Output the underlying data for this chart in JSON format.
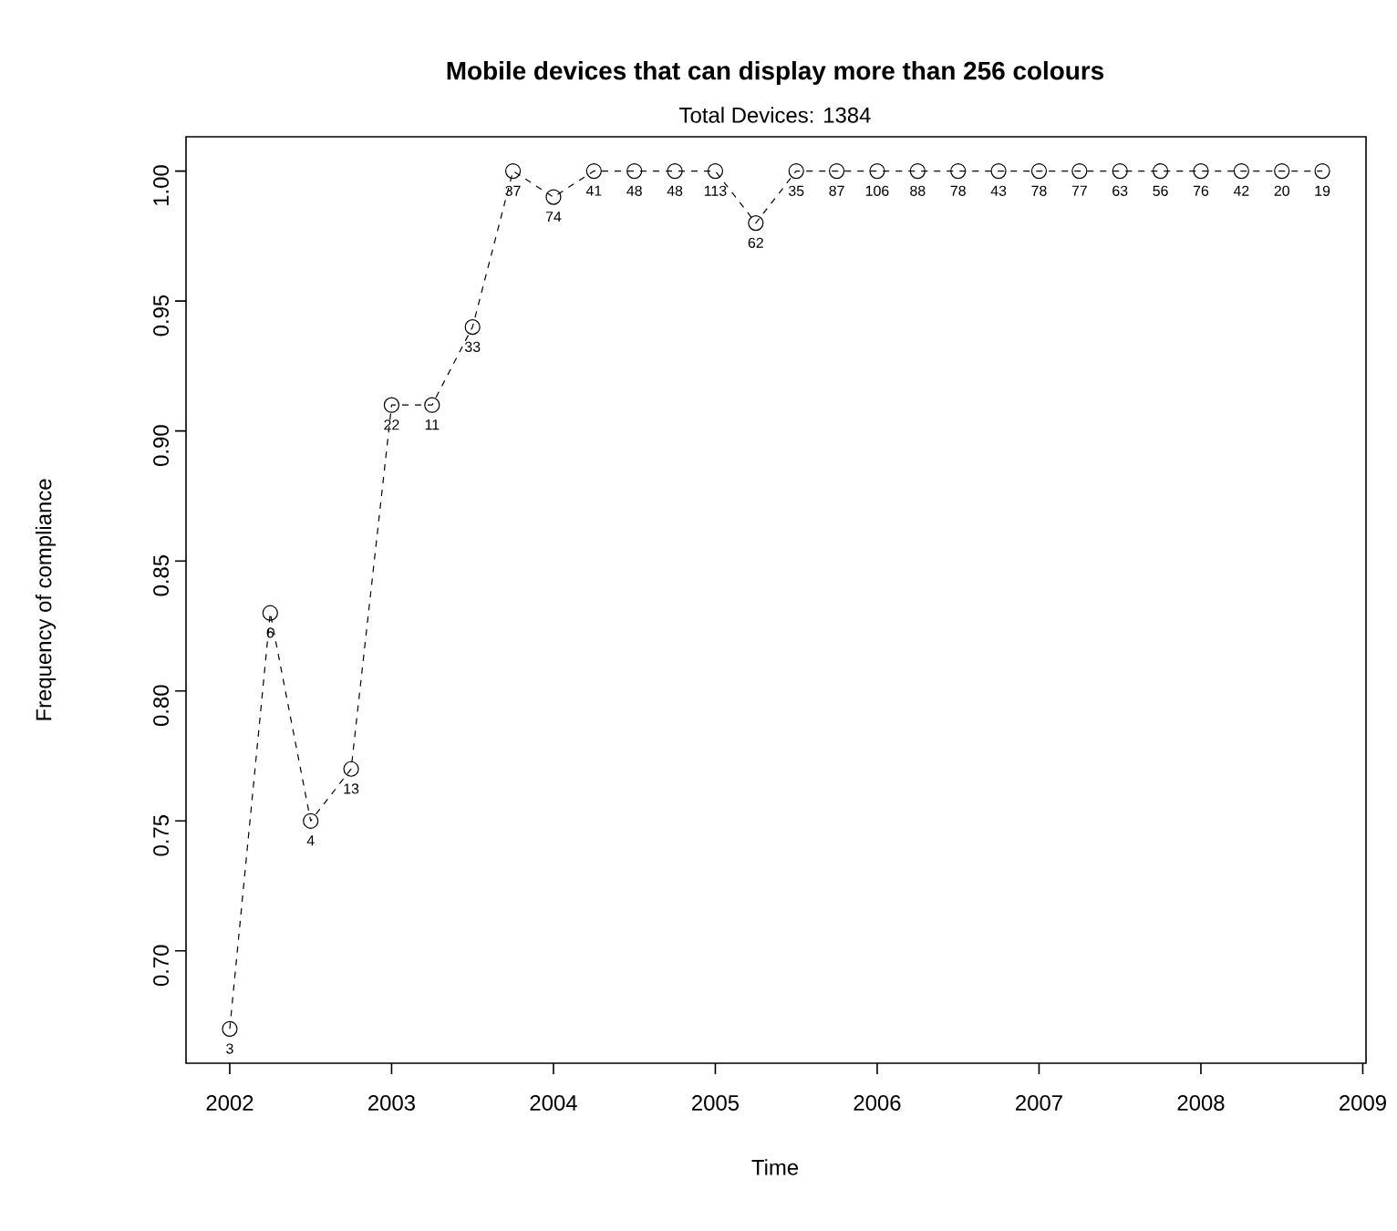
{
  "chart_data": {
    "type": "line",
    "title": "Mobile devices that can display more than 256 colours",
    "subtitle": "Total Devices: 1384",
    "xlabel": "Time",
    "ylabel": "Frequency of compliance",
    "x": [
      2002,
      2002.25,
      2002.5,
      2002.75,
      2003,
      2003.25,
      2003.5,
      2003.75,
      2004,
      2004.25,
      2004.5,
      2004.75,
      2005,
      2005.25,
      2005.5,
      2005.75,
      2006,
      2006.25,
      2006.5,
      2006.75,
      2007,
      2007.25,
      2007.5,
      2007.75,
      2008,
      2008.25,
      2008.5,
      2008.75
    ],
    "values": [
      0.67,
      0.83,
      0.75,
      0.77,
      0.91,
      0.91,
      0.94,
      1.0,
      0.99,
      1.0,
      1.0,
      1.0,
      1.0,
      0.98,
      1.0,
      1.0,
      1.0,
      1.0,
      1.0,
      1.0,
      1.0,
      1.0,
      1.0,
      1.0,
      1.0,
      1.0,
      1.0,
      1.0
    ],
    "annotations": [
      {
        "text": "3",
        "x": 2002,
        "y": 0.67
      },
      {
        "text": "6",
        "x": 2002.25,
        "y": 0.83
      },
      {
        "text": "4",
        "x": 2002.5,
        "y": 0.75
      },
      {
        "text": "13",
        "x": 2002.75,
        "y": 0.77
      },
      {
        "text": "22",
        "x": 2003,
        "y": 0.91
      },
      {
        "text": "11",
        "x": 2003.25,
        "y": 0.91
      },
      {
        "text": "33",
        "x": 2003.5,
        "y": 0.94
      },
      {
        "text": "37",
        "x": 2003.75,
        "y": 1.0
      },
      {
        "text": "74",
        "x": 2004,
        "y": 0.99
      },
      {
        "text": "41",
        "x": 2004.25,
        "y": 1.0
      },
      {
        "text": "48",
        "x": 2004.5,
        "y": 1.0
      },
      {
        "text": "48",
        "x": 2004.75,
        "y": 1.0
      },
      {
        "text": "113",
        "x": 2005,
        "y": 1.0
      },
      {
        "text": "62",
        "x": 2005.25,
        "y": 0.98
      },
      {
        "text": "35",
        "x": 2005.5,
        "y": 1.0
      },
      {
        "text": "87",
        "x": 2005.75,
        "y": 1.0
      },
      {
        "text": "106",
        "x": 2006,
        "y": 1.0
      },
      {
        "text": "88",
        "x": 2006.25,
        "y": 1.0
      },
      {
        "text": "78",
        "x": 2006.5,
        "y": 1.0
      },
      {
        "text": "43",
        "x": 2006.75,
        "y": 1.0
      },
      {
        "text": "78",
        "x": 2007,
        "y": 1.0
      },
      {
        "text": "77",
        "x": 2007.25,
        "y": 1.0
      },
      {
        "text": "63",
        "x": 2007.5,
        "y": 1.0
      },
      {
        "text": "56",
        "x": 2007.75,
        "y": 1.0
      },
      {
        "text": "76",
        "x": 2008,
        "y": 1.0
      },
      {
        "text": "42",
        "x": 2008.25,
        "y": 1.0
      },
      {
        "text": "20",
        "x": 2008.5,
        "y": 1.0
      },
      {
        "text": "19",
        "x": 2008.75,
        "y": 1.0
      }
    ],
    "color": "#000000",
    "marker": "circle",
    "line_style": "dashed",
    "xlim": [
      2001.73,
      2009.02
    ],
    "ylim": [
      0.6568,
      1.0132
    ],
    "xticks": [
      2002,
      2003,
      2004,
      2005,
      2006,
      2007,
      2008,
      2009
    ],
    "yticks": [
      {
        "value": 0.7,
        "label": "0.70"
      },
      {
        "value": 0.75,
        "label": "0.75"
      },
      {
        "value": 0.8,
        "label": "0.80"
      },
      {
        "value": 0.85,
        "label": "0.85"
      },
      {
        "value": 0.9,
        "label": "0.90"
      },
      {
        "value": 0.95,
        "label": "0.95"
      },
      {
        "value": 1.0,
        "label": "1.00"
      }
    ]
  }
}
